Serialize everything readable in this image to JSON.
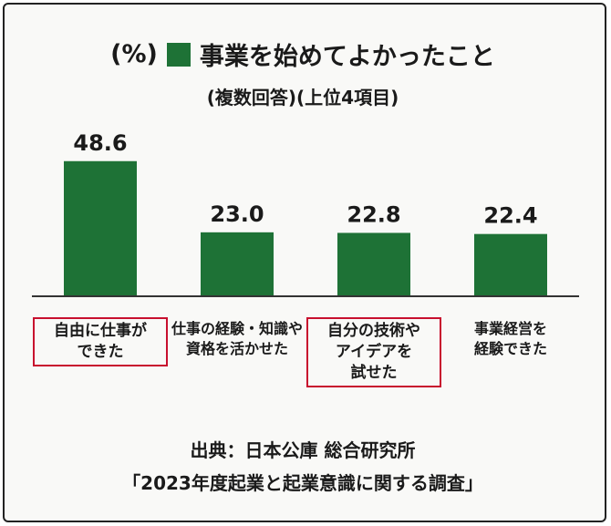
{
  "header": {
    "unit": "(%)",
    "legend_label": "事業を始めてよかったこと",
    "subtitle": "(複数回答)(上位4項目)"
  },
  "chart_data": {
    "type": "bar",
    "unit": "%",
    "categories": [
      "自由に仕事ができた",
      "仕事の経験・知識や資格を活かせた",
      "自分の技術やアイデアを試せた",
      "事業経営を経験できた"
    ],
    "series": [
      {
        "name": "事業を始めてよかったこと",
        "values": [
          48.6,
          23.0,
          22.8,
          22.4
        ]
      }
    ],
    "value_labels": [
      "48.6",
      "23.0",
      "22.8",
      "22.4"
    ],
    "highlighted": [
      true,
      false,
      true,
      false
    ],
    "ylim": [
      0,
      50
    ],
    "grid": false,
    "colors": {
      "bar": "#1e7236",
      "highlight_border": "#c8102e"
    }
  },
  "category_labels": [
    [
      "自由に仕事が",
      "できた"
    ],
    [
      "仕事の経験・知識や",
      "資格を活かせた"
    ],
    [
      "自分の技術や",
      "アイデアを",
      "試せた"
    ],
    [
      "事業経営を",
      "経験できた"
    ]
  ],
  "source": {
    "line1": "出典：日本公庫 総合研究所",
    "line2": "「2023年度起業と起業意識に関する調査」"
  }
}
